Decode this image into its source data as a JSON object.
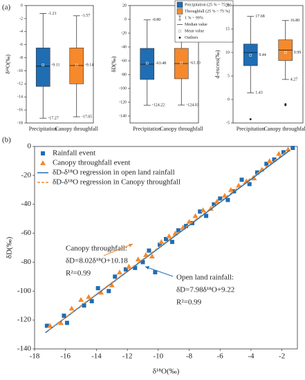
{
  "panel_labels": [
    "(a)",
    "(b)"
  ],
  "chart_data": [
    {
      "type": "box",
      "ylabel": "δ¹⁸O(‰)",
      "categories": [
        "Precipitation",
        "Canopy throughfall"
      ],
      "ylim": [
        -18,
        0
      ],
      "yticks": [
        -18,
        -16,
        -14,
        -12,
        -10,
        -8,
        -6,
        -4,
        -2,
        0
      ],
      "boxes": [
        {
          "color": "#1f6db3",
          "min": -17.27,
          "q1": -12.4,
          "median": -9.3,
          "mean": -9.11,
          "q3": -6.5,
          "max": -1.21,
          "outliers": []
        },
        {
          "color": "#f5892c",
          "min": -17.05,
          "q1": -12.0,
          "median": -9.2,
          "mean": -9.14,
          "q3": -6.5,
          "max": -1.57,
          "outliers": []
        }
      ]
    },
    {
      "type": "box",
      "ylabel": "δD(‰)",
      "categories": [
        "Precipitation",
        "Canopy throughfall"
      ],
      "ylim": [
        -150,
        20
      ],
      "yticks": [
        -140,
        -120,
        -100,
        -80,
        -60,
        -40,
        -20,
        0,
        20
      ],
      "boxes": [
        {
          "color": "#1f6db3",
          "min": -124.22,
          "q1": -87,
          "median": -65,
          "mean": -63.48,
          "q3": -42,
          "max": -0.8,
          "outliers": [],
          "value_labels": {
            "max": "-0.80"
          }
        },
        {
          "color": "#f5892c",
          "min": -124.03,
          "q1": -86,
          "median": -64,
          "mean": -63.1,
          "q3": -42,
          "max": -1.82,
          "outliers": [],
          "value_labels": {
            "mean": "-63.10"
          }
        }
      ],
      "legend": [
        "Precipitation (25 % ~ 75 %)",
        "Throughfall (25 % ~ 75 %)",
        "1 % ~ 99%",
        "Median value",
        "Mean value",
        "Outliers"
      ]
    },
    {
      "type": "box",
      "ylabel": "d-excess(‰)",
      "categories": [
        "Precipitation",
        "Canopy throughfall"
      ],
      "ylim": [
        -5,
        20
      ],
      "yticks": [
        -5,
        0,
        5,
        10,
        15,
        20
      ],
      "boxes": [
        {
          "color": "#1f6db3",
          "min": 1.43,
          "q1": 7.2,
          "median": 10.0,
          "mean": 9.44,
          "q3": 11.8,
          "max": 17.68,
          "outliers": [
            -4.2
          ]
        },
        {
          "color": "#f5892c",
          "min": 4.27,
          "q1": 8.3,
          "median": 10.5,
          "mean": 9.99,
          "q3": 12.7,
          "max": 16.8,
          "outliers": [
            -1.0,
            -1.2
          ],
          "value_labels": {
            "max": "16.80"
          }
        }
      ]
    },
    {
      "type": "scatter",
      "xlabel": "δ¹⁸O(‰)",
      "ylabel": "δD(‰)",
      "xlim": [
        -18,
        -1
      ],
      "xticks": [
        -18,
        -16,
        -14,
        -12,
        -10,
        -8,
        -6,
        -4,
        -2
      ],
      "ylim": [
        -140,
        0
      ],
      "yticks": [
        -140,
        -120,
        -100,
        -80,
        -60,
        -40,
        -20,
        0
      ],
      "series": [
        {
          "name": "Rainfall event",
          "color": "#1f6db3",
          "marker": "square",
          "x": [
            -17.2,
            -16.1,
            -15.9,
            -14.8,
            -14.3,
            -13.9,
            -13.2,
            -12.8,
            -12.1,
            -11.5,
            -11.0,
            -10.6,
            -10.2,
            -9.9,
            -9.5,
            -9.1,
            -8.7,
            -8.2,
            -7.8,
            -7.3,
            -6.9,
            -6.4,
            -6.0,
            -5.5,
            -5.1,
            -4.6,
            -4.1,
            -3.6,
            -3.0,
            -2.5,
            -1.9,
            -1.3
          ],
          "values": [
            -124,
            -117,
            -122,
            -110,
            -107,
            -98,
            -100,
            -90,
            -85,
            -84,
            -80,
            -72,
            -87,
            -68,
            -64,
            -66,
            -58,
            -55,
            -53,
            -45,
            -48,
            -40,
            -36,
            -37,
            -31,
            -23,
            -26,
            -18,
            -12,
            -9,
            -4,
            -1
          ]
        },
        {
          "name": "Canopy throughfall event",
          "color": "#f5892c",
          "marker": "triangle",
          "x": [
            -17.0,
            -16.3,
            -15.6,
            -15.0,
            -14.5,
            -13.7,
            -13.0,
            -12.5,
            -11.9,
            -11.3,
            -10.8,
            -10.4,
            -9.8,
            -9.3,
            -8.9,
            -8.4,
            -8.0,
            -7.6,
            -7.1,
            -6.6,
            -6.2,
            -5.7,
            -5.3,
            -4.8,
            -4.3,
            -3.8,
            -3.3,
            -2.8,
            -2.2,
            -1.6
          ],
          "values": [
            -124,
            -122,
            -112,
            -106,
            -104,
            -101,
            -96,
            -87,
            -83,
            -78,
            -75,
            -76,
            -66,
            -62,
            -60,
            -56,
            -52,
            -48,
            -44,
            -43,
            -38,
            -34,
            -30,
            -27,
            -24,
            -22,
            -16,
            -10,
            -5,
            -2
          ]
        },
        {
          "name": "δD-δ¹⁸O regression in open land rainfall",
          "color": "#1f6db3",
          "marker": "line",
          "dash": false,
          "x": [
            -17.3,
            -1.5
          ],
          "values": [
            -128.8,
            -2.75
          ]
        },
        {
          "name": "δD-δ¹⁸O regression in Canopy throughfall",
          "color": "#f5892c",
          "marker": "line",
          "dash": true,
          "x": [
            -17.1,
            -1.6
          ],
          "values": [
            -126.96,
            -2.65
          ]
        }
      ],
      "annotations": [
        "Canopy throughfall:",
        "δD=8.02δ¹⁸O+10.18",
        "R²=0.99",
        "Open land rainfall:",
        "δD=7.98δ¹⁸O+9.22",
        "R²=0.99"
      ]
    }
  ]
}
